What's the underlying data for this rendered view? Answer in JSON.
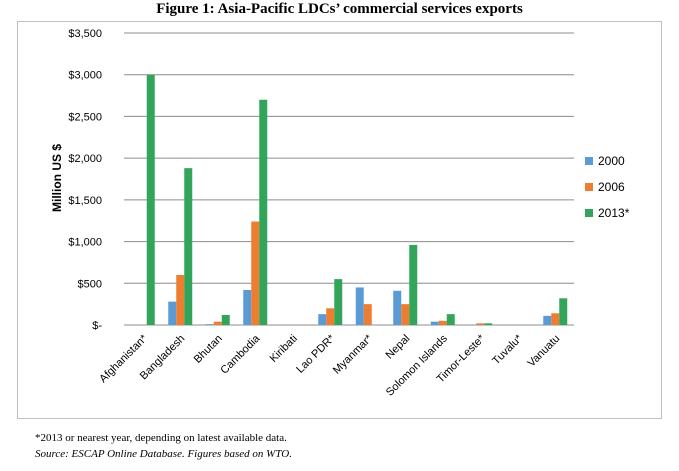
{
  "figure_title": "Figure 1: Asia-Pacific LDCs’ commercial services exports",
  "footnote": "*2013 or nearest year, depending on latest available data.",
  "source_note": "Source:  ESCAP Online Database. Figures based on WTO.",
  "colors": {
    "2000": "#5b9bd5",
    "2006": "#ed7d31",
    "2013*": "#33a55a",
    "grid": "#8c8c8c"
  },
  "chart_data": {
    "type": "bar",
    "title": "",
    "xlabel": "",
    "ylabel": "Million US $",
    "ylim": [
      0,
      3500
    ],
    "yticks": [
      0,
      500,
      1000,
      1500,
      2000,
      2500,
      3000,
      3500
    ],
    "ytick_labels": [
      "$-",
      "$500",
      "$1,000",
      "$1,500",
      "$2,000",
      "$2,500",
      "$3,000",
      "$3,500"
    ],
    "grid": true,
    "legend_position": "right",
    "categories": [
      "Afghanistan*",
      "Bangladesh",
      "Bhutan",
      "Cambodia",
      "Kiribati",
      "Lao PDR*",
      "Myanmar*",
      "Nepal",
      "Solomon Islands",
      "Timor-Leste*",
      "Tuvalu*",
      "Vanuatu"
    ],
    "series": [
      {
        "name": "2000",
        "values": [
          0,
          280,
          10,
          420,
          0,
          130,
          450,
          410,
          40,
          0,
          0,
          110
        ]
      },
      {
        "name": "2006",
        "values": [
          0,
          600,
          40,
          1240,
          0,
          200,
          250,
          250,
          50,
          20,
          0,
          140
        ]
      },
      {
        "name": "2013*",
        "values": [
          3000,
          1880,
          120,
          2700,
          0,
          550,
          0,
          960,
          130,
          20,
          0,
          320
        ]
      }
    ]
  }
}
